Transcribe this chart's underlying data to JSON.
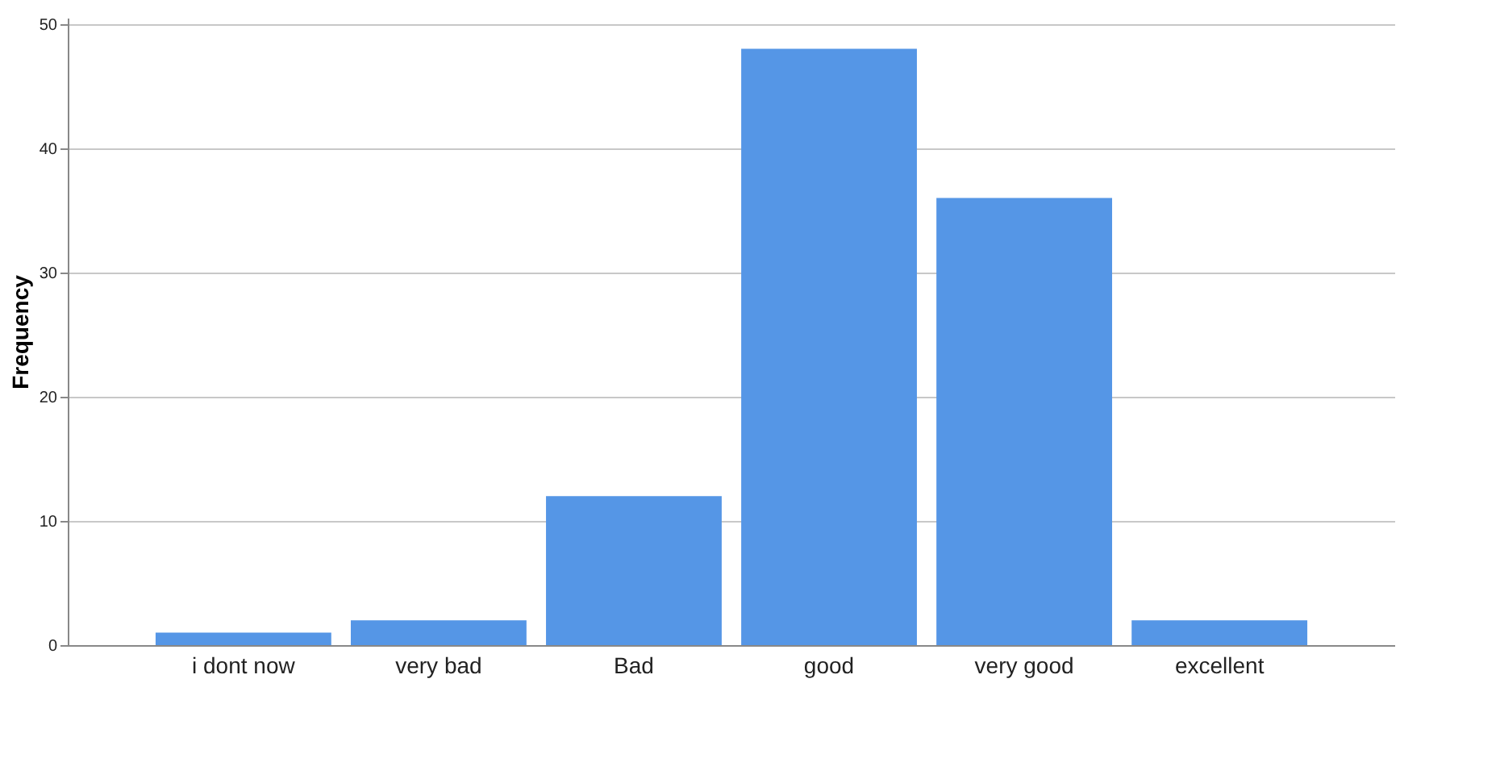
{
  "chart_data": {
    "type": "bar",
    "ylabel": "Frequency",
    "categories": [
      "i dont now",
      "very bad",
      "Bad",
      "good",
      "very good",
      "excellent"
    ],
    "values": [
      1,
      2,
      12,
      48,
      36,
      2
    ],
    "color": "#5596e6",
    "ylim": [
      0,
      50.5
    ],
    "yticks": [
      0,
      10,
      20,
      30,
      40,
      50
    ],
    "grid": "y"
  }
}
